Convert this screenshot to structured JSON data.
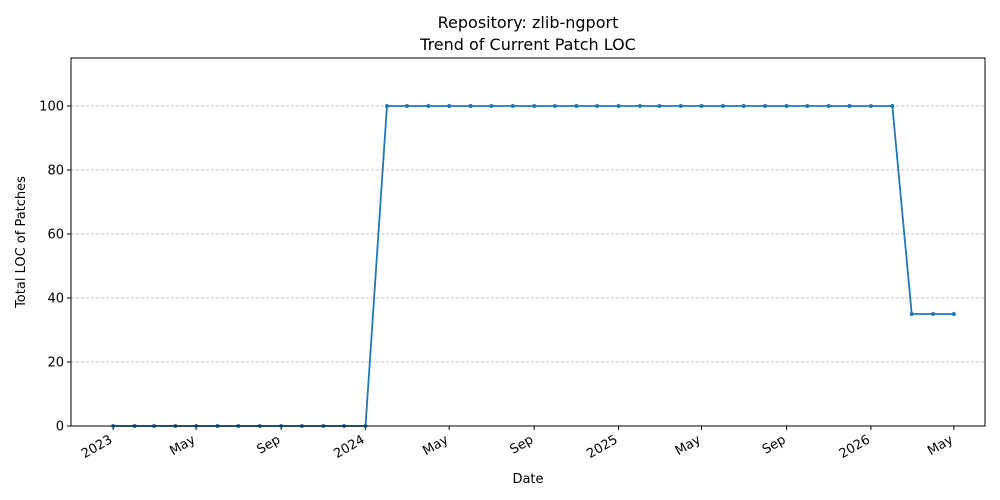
{
  "chart_data": {
    "type": "line",
    "title": "Repository: zlib-ngport",
    "subtitle": "Trend of Current Patch LOC",
    "xlabel": "Date",
    "ylabel": "Total LOC of Patches",
    "ylim": [
      0,
      115
    ],
    "y_ticks": [
      0,
      20,
      40,
      60,
      80,
      100
    ],
    "x_ticks": [
      {
        "date": "2023-01-01",
        "label": "2023"
      },
      {
        "date": "2023-05-01",
        "label": "May"
      },
      {
        "date": "2023-09-01",
        "label": "Sep"
      },
      {
        "date": "2024-01-01",
        "label": "2024"
      },
      {
        "date": "2024-05-01",
        "label": "May"
      },
      {
        "date": "2024-09-01",
        "label": "Sep"
      },
      {
        "date": "2025-01-01",
        "label": "2025"
      },
      {
        "date": "2025-05-01",
        "label": "May"
      },
      {
        "date": "2025-09-01",
        "label": "Sep"
      },
      {
        "date": "2026-01-01",
        "label": "2026"
      },
      {
        "date": "2026-05-01",
        "label": "May"
      }
    ],
    "xlim": [
      "2022-11-01",
      "2026-06-15"
    ],
    "grid": "y-only",
    "color": "#1f77b4",
    "x": [
      "2023-01-01",
      "2023-02-01",
      "2023-03-01",
      "2023-04-01",
      "2023-05-01",
      "2023-06-01",
      "2023-07-01",
      "2023-08-01",
      "2023-09-01",
      "2023-10-01",
      "2023-11-01",
      "2023-12-01",
      "2024-01-01",
      "2024-02-01",
      "2024-03-01",
      "2024-04-01",
      "2024-05-01",
      "2024-06-01",
      "2024-07-01",
      "2024-08-01",
      "2024-09-01",
      "2024-10-01",
      "2024-11-01",
      "2024-12-01",
      "2025-01-01",
      "2025-02-01",
      "2025-03-01",
      "2025-04-01",
      "2025-05-01",
      "2025-06-01",
      "2025-07-01",
      "2025-08-01",
      "2025-09-01",
      "2025-10-01",
      "2025-11-01",
      "2025-12-01",
      "2026-01-01",
      "2026-02-01",
      "2026-03-01",
      "2026-04-01",
      "2026-05-01"
    ],
    "y": [
      0,
      0,
      0,
      0,
      0,
      0,
      0,
      0,
      0,
      0,
      0,
      0,
      0,
      100,
      100,
      100,
      100,
      100,
      100,
      100,
      100,
      100,
      100,
      100,
      100,
      100,
      100,
      100,
      100,
      100,
      100,
      100,
      100,
      100,
      100,
      100,
      100,
      100,
      35,
      35,
      35
    ]
  }
}
